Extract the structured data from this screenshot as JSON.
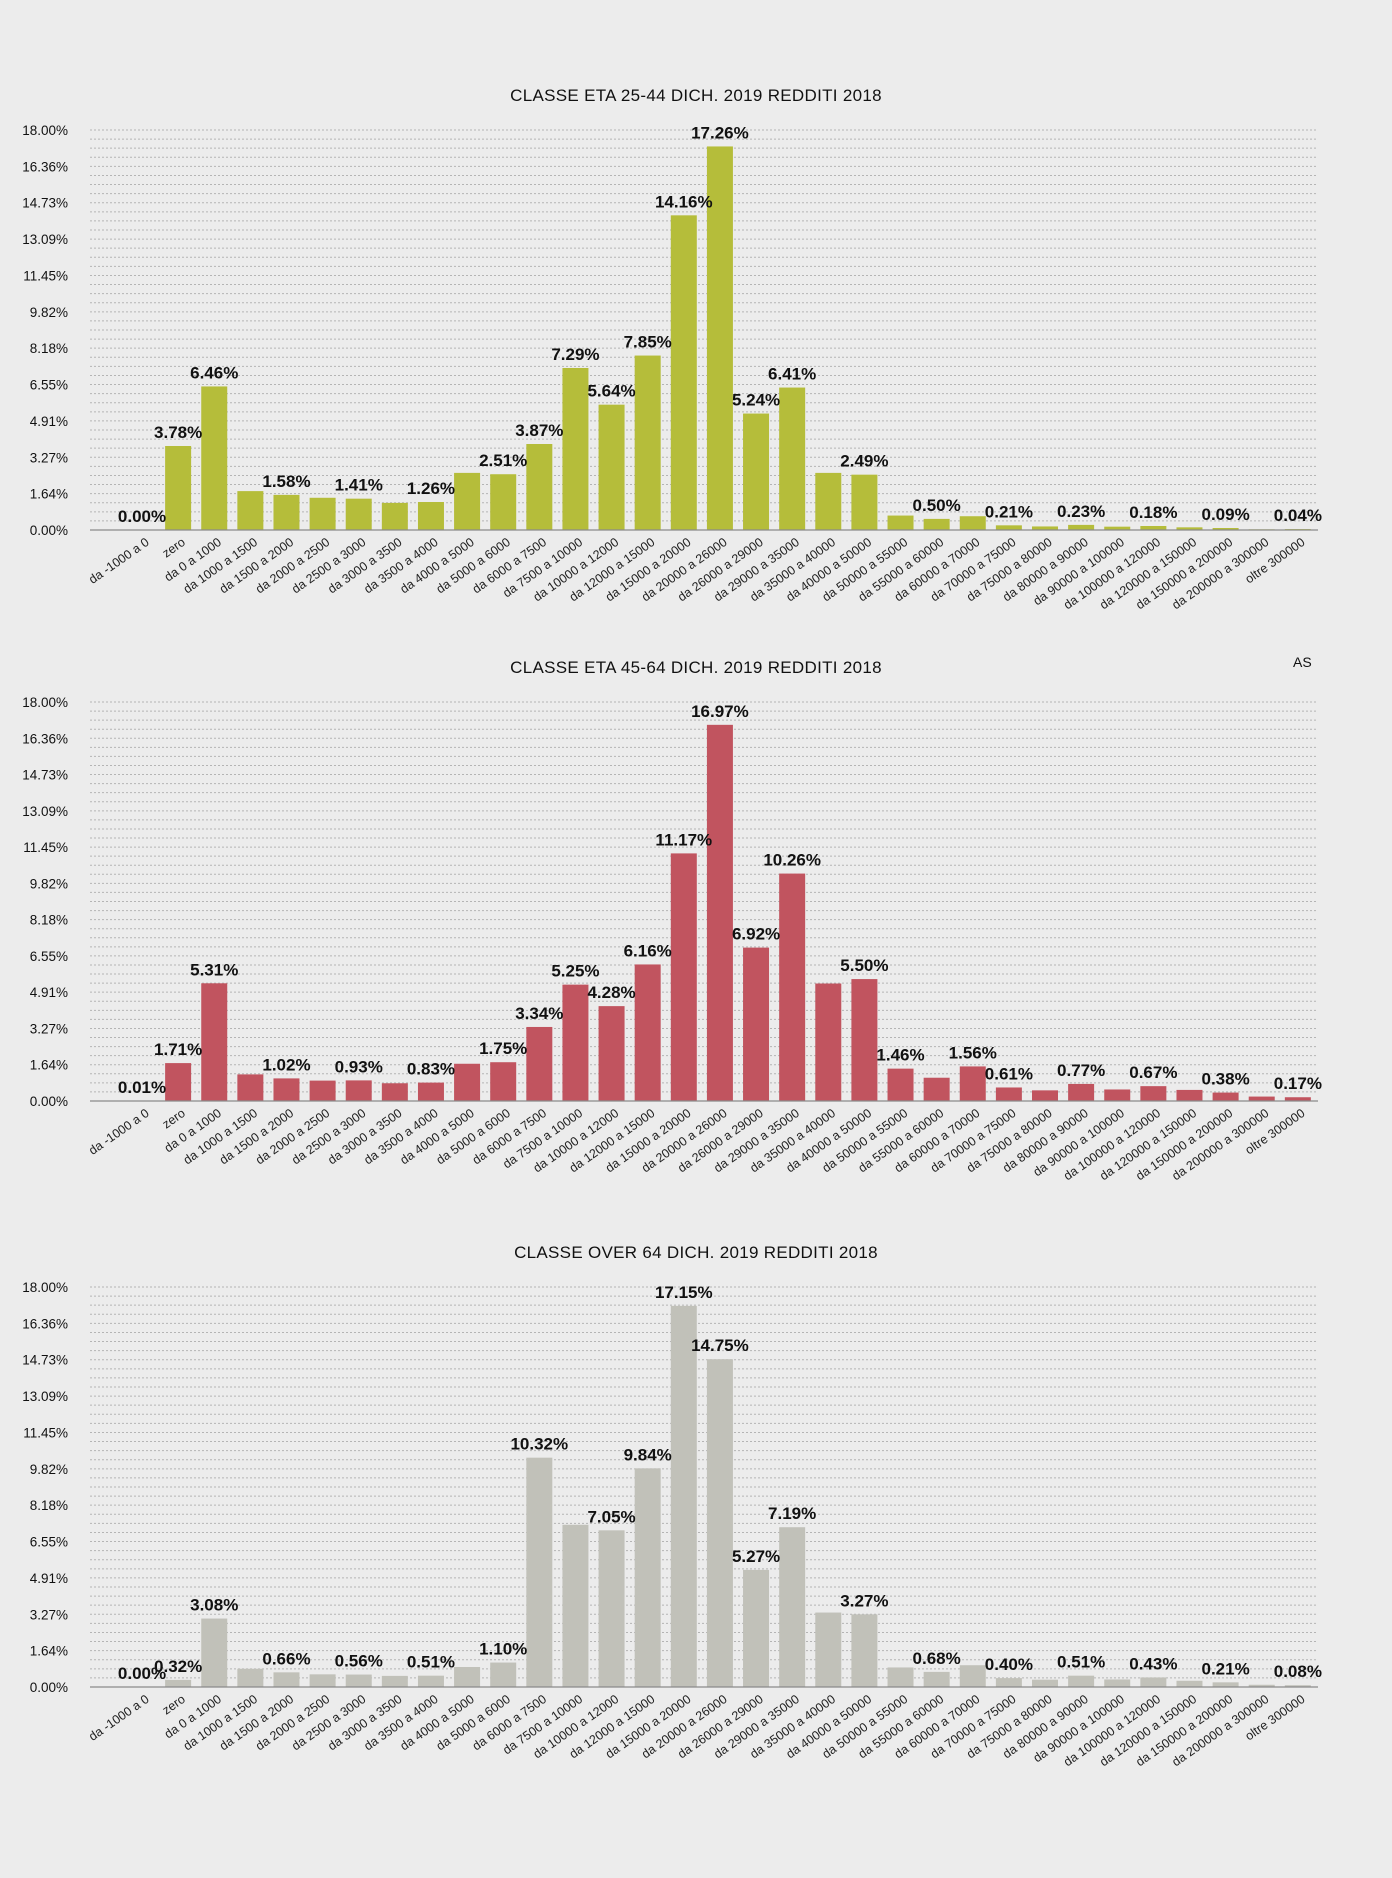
{
  "chart_data": [
    {
      "type": "bar",
      "title": "CLASSE ETA 25-44 DICH. 2019 REDDITI 2018",
      "color": "#b5bd3a",
      "categories": [
        "da -1000 a 0",
        "zero",
        "da 0 a 1000",
        "da 1000 a 1500",
        "da 1500 a 2000",
        "da 2000 a 2500",
        "da 2500 a 3000",
        "da 3000 a 3500",
        "da 3500 a 4000",
        "da 4000 a 5000",
        "da 5000 a 6000",
        "da 6000 a 7500",
        "da 7500 a 10000",
        "da 10000 a 12000",
        "da 12000 a 15000",
        "da 15000 a 20000",
        "da 20000 a 26000",
        "da 26000 a 29000",
        "da 29000 a 35000",
        "da 35000 a 40000",
        "da 40000 a 50000",
        "da 50000 a 55000",
        "da 55000 a 60000",
        "da 60000 a 70000",
        "da 70000 a 75000",
        "da 75000 a 80000",
        "da 80000 a 90000",
        "da 90000 a 100000",
        "da 100000 a 120000",
        "da 120000 a 150000",
        "da 150000 a 200000",
        "da 200000 a 300000",
        "oltre 300000"
      ],
      "values": [
        0.0,
        3.78,
        6.46,
        1.75,
        1.58,
        1.45,
        1.41,
        1.22,
        1.26,
        2.57,
        2.51,
        3.87,
        7.29,
        5.64,
        7.85,
        14.16,
        17.26,
        5.24,
        6.41,
        2.57,
        2.49,
        0.65,
        0.5,
        0.62,
        0.21,
        0.16,
        0.23,
        0.15,
        0.18,
        0.12,
        0.09,
        0.03,
        0.04
      ],
      "labels": [
        "0.00%",
        "",
        "6.46%",
        "",
        "1.58%",
        "",
        "1.41%",
        "",
        "1.26%",
        "",
        "2.51%",
        "3.87%",
        "7.29%",
        "5.64%",
        "7.85%",
        "14.16%",
        "17.26%",
        "5.24%",
        "6.41%",
        "",
        "2.49%",
        "",
        "0.50%",
        "",
        "0.21%",
        "",
        "0.23%",
        "",
        "0.18%",
        "",
        "0.09%",
        "",
        "0.04%"
      ],
      "first_label": "3.78%",
      "yticks": [
        "18.00%",
        "16.36%",
        "14.73%",
        "13.09%",
        "11.45%",
        "9.82%",
        "8.18%",
        "6.55%",
        "4.91%",
        "3.27%",
        "1.64%",
        "0.00%"
      ],
      "ylim": [
        0,
        18
      ],
      "note": ""
    },
    {
      "type": "bar",
      "title": "CLASSE ETA 45-64 DICH. 2019 REDDITI 2018",
      "color": "#c1545f",
      "categories": [
        "da -1000 a 0",
        "zero",
        "da 0 a 1000",
        "da 1000 a 1500",
        "da 1500 a 2000",
        "da 2000 a 2500",
        "da 2500 a 3000",
        "da 3000 a 3500",
        "da 3500 a 4000",
        "da 4000 a 5000",
        "da 5000 a 6000",
        "da 6000 a 7500",
        "da 7500 a 10000",
        "da 10000 a 12000",
        "da 12000 a 15000",
        "da 15000 a 20000",
        "da 20000 a 26000",
        "da 26000 a 29000",
        "da 29000 a 35000",
        "da 35000 a 40000",
        "da 40000 a 50000",
        "da 50000 a 55000",
        "da 55000 a 60000",
        "da 60000 a 70000",
        "da 70000 a 75000",
        "da 75000 a 80000",
        "da 80000 a 90000",
        "da 90000 a 100000",
        "da 100000 a 120000",
        "da 120000 a 150000",
        "da 150000 a 200000",
        "da 200000 a 300000",
        "oltre 300000"
      ],
      "values": [
        0.01,
        1.71,
        5.31,
        1.2,
        1.02,
        0.92,
        0.93,
        0.8,
        0.83,
        1.68,
        1.75,
        3.34,
        5.25,
        4.28,
        6.16,
        11.17,
        16.97,
        6.92,
        10.26,
        5.3,
        5.5,
        1.46,
        1.05,
        1.56,
        0.61,
        0.48,
        0.77,
        0.52,
        0.67,
        0.5,
        0.38,
        0.2,
        0.17
      ],
      "labels": [
        "0.01%",
        "1.71%",
        "5.31%",
        "",
        "1.02%",
        "",
        "0.93%",
        "",
        "0.83%",
        "",
        "1.75%",
        "3.34%",
        "5.25%",
        "4.28%",
        "6.16%",
        "11.17%",
        "16.97%",
        "6.92%",
        "10.26%",
        "",
        "5.50%",
        "1.46%",
        "",
        "1.56%",
        "0.61%",
        "",
        "0.77%",
        "",
        "0.67%",
        "",
        "0.38%",
        "",
        "0.17%"
      ],
      "yticks": [
        "18.00%",
        "16.36%",
        "14.73%",
        "13.09%",
        "11.45%",
        "9.82%",
        "8.18%",
        "6.55%",
        "4.91%",
        "3.27%",
        "1.64%",
        "0.00%"
      ],
      "ylim": [
        0,
        18
      ],
      "note": "AS"
    },
    {
      "type": "bar",
      "title": "CLASSE OVER 64 DICH. 2019 REDDITI 2018",
      "color": "#c1c1b9",
      "categories": [
        "da -1000 a 0",
        "zero",
        "da 0 a 1000",
        "da 1000 a 1500",
        "da 1500 a 2000",
        "da 2000 a 2500",
        "da 2500 a 3000",
        "da 3000 a 3500",
        "da 3500 a 4000",
        "da 4000 a 5000",
        "da 5000 a 6000",
        "da 6000 a 7500",
        "da 7500 a 10000",
        "da 10000 a 12000",
        "da 12000 a 15000",
        "da 15000 a 20000",
        "da 20000 a 26000",
        "da 26000 a 29000",
        "da 29000 a 35000",
        "da 35000 a 40000",
        "da 40000 a 50000",
        "da 50000 a 55000",
        "da 55000 a 60000",
        "da 60000 a 70000",
        "da 70000 a 75000",
        "da 75000 a 80000",
        "da 80000 a 90000",
        "da 90000 a 100000",
        "da 100000 a 120000",
        "da 120000 a 150000",
        "da 150000 a 200000",
        "da 200000 a 300000",
        "oltre 300000"
      ],
      "values": [
        0.0,
        0.32,
        3.08,
        0.82,
        0.66,
        0.57,
        0.56,
        0.5,
        0.51,
        0.9,
        1.1,
        10.32,
        7.3,
        7.05,
        9.84,
        17.15,
        14.75,
        5.27,
        7.19,
        3.35,
        3.27,
        0.88,
        0.68,
        0.98,
        0.4,
        0.33,
        0.51,
        0.34,
        0.43,
        0.28,
        0.21,
        0.1,
        0.08
      ],
      "labels": [
        "0.00%",
        "0.32%",
        "3.08%",
        "",
        "0.66%",
        "",
        "0.56%",
        "",
        "0.51%",
        "",
        "1.10%",
        "10.32%",
        "",
        "7.05%",
        "9.84%",
        "17.15%",
        "14.75%",
        "5.27%",
        "7.19%",
        "",
        "3.27%",
        "",
        "0.68%",
        "",
        "0.40%",
        "",
        "0.51%",
        "",
        "0.43%",
        "",
        "0.21%",
        "",
        "0.08%"
      ],
      "yticks": [
        "18.00%",
        "16.36%",
        "14.73%",
        "13.09%",
        "11.45%",
        "9.82%",
        "8.18%",
        "6.55%",
        "4.91%",
        "3.27%",
        "1.64%",
        "0.00%"
      ],
      "ylim": [
        0,
        18
      ],
      "note": ""
    }
  ]
}
